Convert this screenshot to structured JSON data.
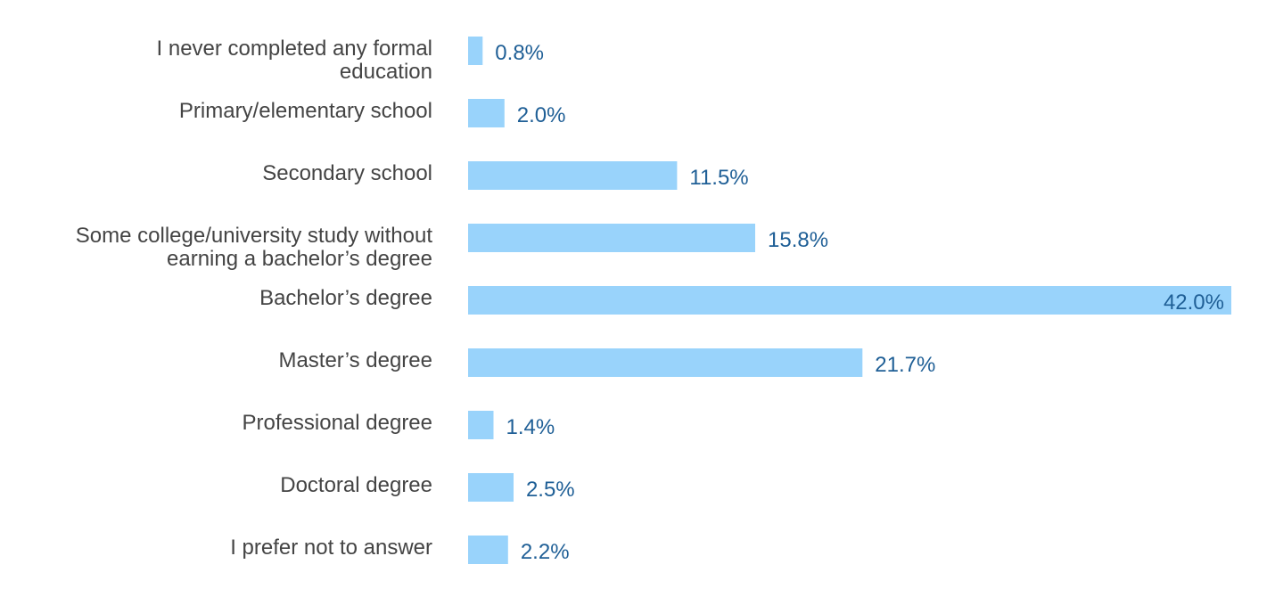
{
  "colors": {
    "bar": "#99d3fb",
    "value_label": "#1f5f96",
    "category_label": "#444444",
    "background": "#ffffff"
  },
  "chart_data": {
    "type": "bar",
    "orientation": "horizontal",
    "title": "",
    "xlabel": "",
    "ylabel": "",
    "grid": false,
    "legend": "none",
    "value_suffix": "%",
    "xlim": [
      0,
      42.0
    ],
    "categories": [
      [
        "I never completed any formal",
        "education"
      ],
      [
        "Primary/elementary school"
      ],
      [
        "Secondary school"
      ],
      [
        "Some college/university study without",
        "earning a bachelor’s degree"
      ],
      [
        "Bachelor’s degree"
      ],
      [
        "Master’s degree"
      ],
      [
        "Professional degree"
      ],
      [
        "Doctoral degree"
      ],
      [
        "I prefer not to answer"
      ]
    ],
    "values": [
      0.8,
      2.0,
      11.5,
      15.8,
      42.0,
      21.7,
      1.4,
      2.5,
      2.2
    ],
    "value_labels": [
      "0.8%",
      "2.0%",
      "11.5%",
      "15.8%",
      "42.0%",
      "21.7%",
      "1.4%",
      "2.5%",
      "2.2%"
    ]
  }
}
